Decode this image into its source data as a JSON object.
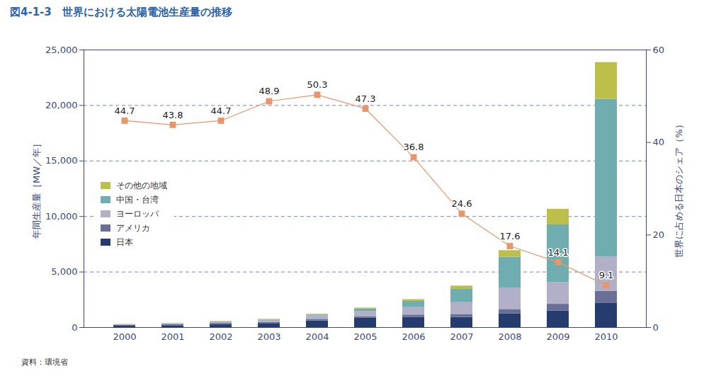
{
  "chart_data": {
    "type": "bar",
    "title": "図4-1-3　世界における太陽電池生産量の推移",
    "source": "資料：環境省",
    "ylabel": "年間生産量［MW／年］",
    "y2label": "世界に占める日本のシェア（%）",
    "categories": [
      "2000",
      "2001",
      "2002",
      "2003",
      "2004",
      "2005",
      "2006",
      "2007",
      "2008",
      "2009",
      "2010"
    ],
    "stacked": true,
    "legend": "upper left",
    "grid": true,
    "ylim": [
      0,
      25000
    ],
    "yticks": [
      0,
      {
        "value": 5000,
        "label": "5,000"
      },
      {
        "value": 10000,
        "label": "10,000"
      },
      {
        "value": 15000,
        "label": "15,000"
      },
      {
        "value": 20000,
        "label": "20,000"
      },
      {
        "value": 25000,
        "label": "25,000"
      }
    ],
    "y2lim": [
      0,
      60
    ],
    "y2ticks": [
      0,
      20,
      40,
      60
    ],
    "series": [
      {
        "name": "日本",
        "color": "#243c6e",
        "values": [
          129,
          171,
          251,
          364,
          602,
          833,
          927,
          920,
          1220,
          1503,
          2170
        ]
      },
      {
        "name": "アメリカ",
        "color": "#6a6f96",
        "values": [
          75,
          100,
          120,
          103,
          139,
          156,
          202,
          266,
          412,
          595,
          1100
        ]
      },
      {
        "name": "ヨーロッパ",
        "color": "#b2afc8",
        "values": [
          60,
          86,
          135,
          193,
          314,
          470,
          680,
          1060,
          1900,
          1950,
          3100
        ]
      },
      {
        "name": "中国・台湾",
        "color": "#6fadb0",
        "values": [
          5,
          10,
          20,
          40,
          80,
          220,
          550,
          1200,
          2800,
          5200,
          14200
        ]
      },
      {
        "name": "その他の地域",
        "color": "#bcc04a",
        "values": [
          20,
          23,
          34,
          44,
          62,
          82,
          160,
          294,
          600,
          1412,
          3300
        ]
      },
      {
        "type": "line",
        "axis": "y2",
        "color": "#e8956b",
        "marker": "square",
        "data_labels": true,
        "values": [
          44.7,
          43.8,
          44.7,
          48.9,
          50.3,
          47.3,
          36.8,
          24.6,
          17.6,
          14.1,
          9.1
        ]
      }
    ]
  }
}
